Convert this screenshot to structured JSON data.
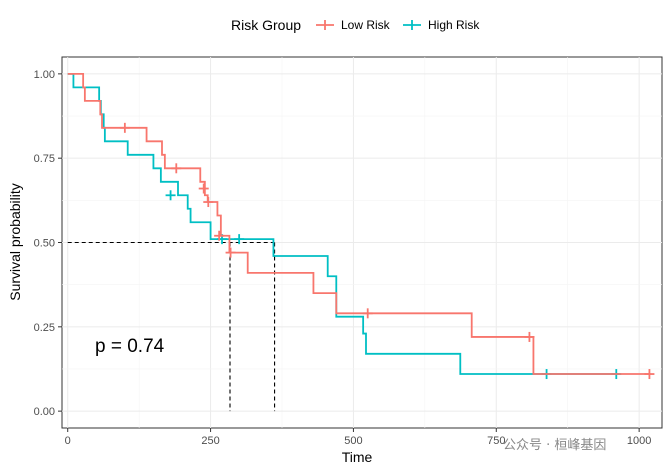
{
  "chart_data": {
    "type": "line",
    "subtype": "kaplan-meier step",
    "title": "",
    "xlabel": "Time",
    "ylabel": "Survival probability",
    "xlim": [
      -10,
      1040
    ],
    "ylim": [
      -0.05,
      1.05
    ],
    "x_ticks": [
      0,
      250,
      500,
      750,
      1000
    ],
    "x_tick_labels": [
      "0",
      "250",
      "500",
      "750",
      "1000"
    ],
    "y_ticks": [
      0,
      0.25,
      0.5,
      0.75,
      1.0
    ],
    "y_tick_labels": [
      "0.00",
      "0.25",
      "0.50",
      "0.75",
      "1.00"
    ],
    "grid": true,
    "legend": {
      "title": "Risk Group",
      "position": "top"
    },
    "median_survival": {
      "y": 0.5,
      "low_risk_x": 284,
      "high_risk_x": 362
    },
    "annotation": "p = 0.74",
    "series": [
      {
        "name": "Low Risk",
        "color": "#F8766D",
        "steps": [
          [
            0,
            1.0
          ],
          [
            27,
            0.96
          ],
          [
            30,
            0.92
          ],
          [
            57,
            0.88
          ],
          [
            60,
            0.84
          ],
          [
            118,
            0.84
          ],
          [
            138,
            0.8
          ],
          [
            165,
            0.76
          ],
          [
            170,
            0.72
          ],
          [
            232,
            0.68
          ],
          [
            240,
            0.64
          ],
          [
            245,
            0.62
          ],
          [
            262,
            0.58
          ],
          [
            268,
            0.52
          ],
          [
            283,
            0.47
          ],
          [
            315,
            0.41
          ],
          [
            430,
            0.35
          ],
          [
            470,
            0.29
          ],
          [
            707,
            0.22
          ],
          [
            815,
            0.11
          ],
          [
            1020,
            0.11
          ]
        ],
        "censored": [
          [
            100,
            0.84
          ],
          [
            190,
            0.72
          ],
          [
            238,
            0.66
          ],
          [
            246,
            0.62
          ],
          [
            265,
            0.52
          ],
          [
            285,
            0.47
          ],
          [
            525,
            0.29
          ],
          [
            808,
            0.22
          ],
          [
            1018,
            0.11
          ]
        ]
      },
      {
        "name": "High Risk",
        "color": "#00BFC4",
        "steps": [
          [
            0,
            1.0
          ],
          [
            10,
            0.96
          ],
          [
            55,
            0.92
          ],
          [
            58,
            0.88
          ],
          [
            63,
            0.84
          ],
          [
            65,
            0.8
          ],
          [
            105,
            0.76
          ],
          [
            150,
            0.72
          ],
          [
            163,
            0.68
          ],
          [
            193,
            0.64
          ],
          [
            210,
            0.6
          ],
          [
            215,
            0.56
          ],
          [
            250,
            0.51
          ],
          [
            360,
            0.46
          ],
          [
            455,
            0.4
          ],
          [
            470,
            0.34
          ],
          [
            470,
            0.28
          ],
          [
            517,
            0.23
          ],
          [
            522,
            0.17
          ],
          [
            687,
            0.11
          ],
          [
            965,
            0.11
          ]
        ],
        "censored": [
          [
            180,
            0.64
          ],
          [
            270,
            0.51
          ],
          [
            300,
            0.51
          ],
          [
            838,
            0.11
          ],
          [
            960,
            0.11
          ]
        ]
      }
    ]
  },
  "watermark": "公众号 · 桓峰基因"
}
